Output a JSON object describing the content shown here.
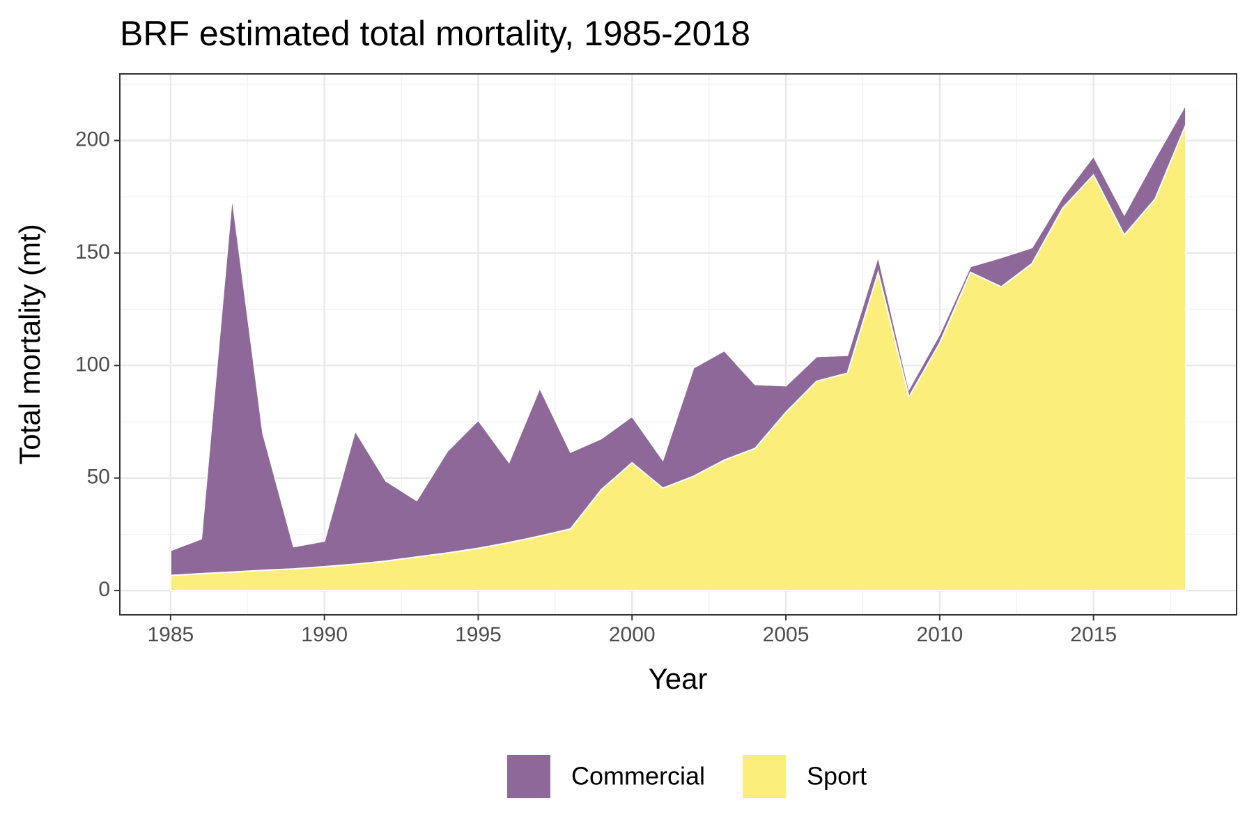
{
  "chart_data": {
    "type": "stacked_area",
    "title": "BRF estimated total mortality, 1985-2018",
    "x_label": "Year",
    "y_label": "Total mortality (mt)",
    "x": [
      1985,
      1986,
      1987,
      1988,
      1989,
      1990,
      1991,
      1992,
      1993,
      1994,
      1995,
      1996,
      1997,
      1998,
      1999,
      2000,
      2001,
      2002,
      2003,
      2004,
      2005,
      2006,
      2007,
      2008,
      2009,
      2010,
      2011,
      2012,
      2013,
      2014,
      2015,
      2016,
      2017,
      2018
    ],
    "series": [
      {
        "name": "Commercial",
        "color": "#8E6898",
        "values": [
          11.1,
          15.5,
          166.8,
          61,
          9.9,
          11.4,
          59.3,
          35.6,
          25.1,
          45.3,
          56.9,
          35.7,
          65.8,
          34.1,
          22.7,
          20.6,
          12.5,
          48.2,
          48.6,
          28.4,
          11.8,
          11,
          7.9,
          7.1,
          3.5,
          4,
          2.6,
          13,
          7.1,
          5,
          8.3,
          9,
          18,
          9
        ]
      },
      {
        "name": "Sport",
        "color": "#FCEE7A",
        "values": [
          6.7,
          7.5,
          8.2,
          9,
          9.6,
          10.6,
          11.7,
          13.1,
          14.9,
          16.7,
          18.8,
          21.3,
          24.2,
          27.4,
          44.8,
          56.8,
          45.5,
          50.8,
          58,
          63.2,
          79.2,
          93,
          96.6,
          141.4,
          86,
          110,
          141.4,
          135,
          145.3,
          170,
          184.7,
          158,
          174,
          207
        ]
      }
    ],
    "xlim": [
      1983.35,
      2019.65
    ],
    "ylim": [
      -10.8,
      229.6
    ],
    "xticks": [
      1985,
      1990,
      1995,
      2000,
      2005,
      2010,
      2015
    ],
    "yticks": [
      0,
      50,
      100,
      150,
      200
    ],
    "grid": true,
    "legend": "bottom"
  }
}
